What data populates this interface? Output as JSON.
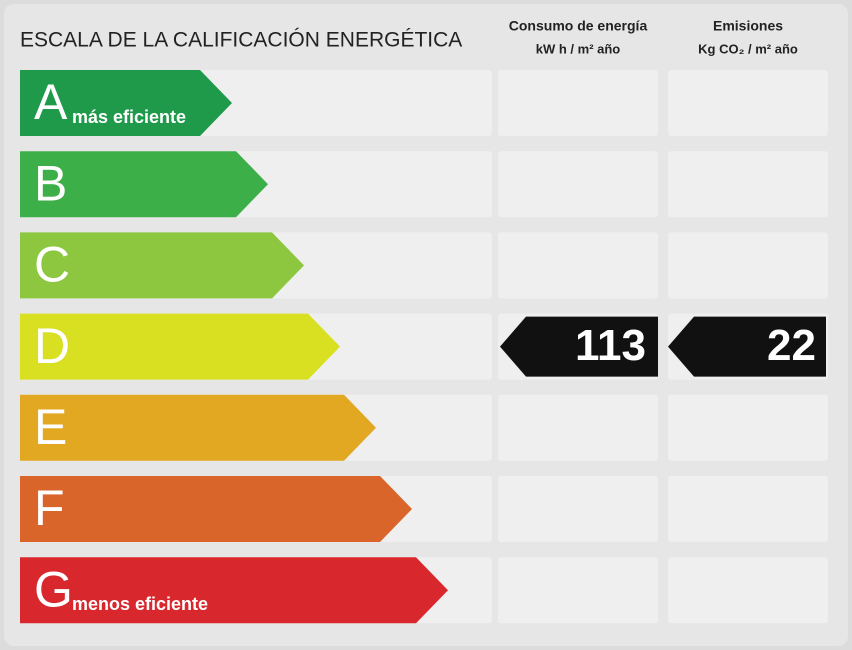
{
  "header": {
    "title": "ESCALA DE LA CALIFICACIÓN ENERGÉTICA"
  },
  "columns": [
    {
      "title": "Consumo de energía",
      "unit": "kW h / m² año"
    },
    {
      "title": "Emisiones",
      "unit": "Kg CO₂ / m² año"
    }
  ],
  "rows": [
    {
      "letter": "A",
      "note": "más eficiente",
      "color": "#1e9a4a"
    },
    {
      "letter": "B",
      "color": "#3daf48"
    },
    {
      "letter": "C",
      "color": "#8dc63f"
    },
    {
      "letter": "D",
      "color": "#d8e021",
      "consumption": 113,
      "emissions": 22
    },
    {
      "letter": "E",
      "color": "#e3a822"
    },
    {
      "letter": "F",
      "color": "#d9652a"
    },
    {
      "letter": "G",
      "note": "menos eficiente",
      "color": "#d8282e"
    }
  ]
}
